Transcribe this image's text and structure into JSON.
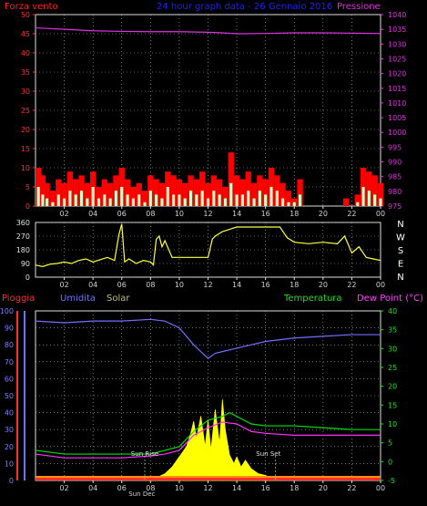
{
  "header": {
    "left_label": "Forza vento",
    "center_label": "24 hour graph data - 26 Gennaio 2016",
    "right_label": "Pressione"
  },
  "bottom_header": {
    "pioggia": "Pioggia",
    "umidita": "Umidita",
    "solar": "Solar",
    "temperatura": "Temperatura",
    "dewpoint": "Dew Point (°C)"
  },
  "colors": {
    "wind": "#ff0000",
    "gust": "#c8ffc8",
    "pressure": "#e030e0",
    "direction": "#ffff40",
    "humidity": "#7070ff",
    "solar": "#ffff00",
    "temperature": "#00e000",
    "dewpoint": "#ff30ff",
    "rain": "#ff3030",
    "grid": "#c0c0c0"
  },
  "chart_data": [
    {
      "type": "bar",
      "name": "wind-pressure",
      "x_ticks": [
        "02",
        "04",
        "06",
        "08",
        "10",
        "12",
        "14",
        "16",
        "18",
        "20",
        "22",
        "00"
      ],
      "y_left_ticks": [
        "0",
        "5",
        "10",
        "15",
        "20",
        "25",
        "30",
        "35",
        "40",
        "45",
        "50"
      ],
      "y_left_lim": [
        0,
        50
      ],
      "y_right_ticks": [
        "975",
        "980",
        "985",
        "990",
        "995",
        "1000",
        "1005",
        "1010",
        "1015",
        "1020",
        "1025",
        "1030",
        "1035",
        "1040"
      ],
      "y_right_lim": [
        975,
        1040
      ],
      "x_range_hours": [
        0,
        24
      ],
      "series": [
        {
          "name": "Forza vento",
          "kind": "bar",
          "x": [
            0,
            0.3,
            0.6,
            1.0,
            1.4,
            1.8,
            2.2,
            2.6,
            3.0,
            3.4,
            3.8,
            4.2,
            4.6,
            5.0,
            5.4,
            5.8,
            6.2,
            6.6,
            7.0,
            7.4,
            7.8,
            8.2,
            8.6,
            9.0,
            9.4,
            9.8,
            10.2,
            10.6,
            11.0,
            11.4,
            11.8,
            12.2,
            12.6,
            13.0,
            13.4,
            13.8,
            14.2,
            14.6,
            15.0,
            15.4,
            15.8,
            16.2,
            16.6,
            17.0,
            17.4,
            17.8,
            18.2,
            18.6,
            19.0,
            19.4,
            19.8,
            20.2,
            20.6,
            21.0,
            21.4,
            21.8,
            22.2,
            22.6,
            23.0,
            23.4,
            23.8
          ],
          "values": [
            10,
            8,
            6,
            4,
            7,
            6,
            9,
            7,
            8,
            6,
            9,
            5,
            7,
            6,
            8,
            10,
            7,
            5,
            6,
            4,
            8,
            7,
            6,
            9,
            8,
            7,
            6,
            8,
            7,
            9,
            6,
            8,
            7,
            5,
            14,
            8,
            7,
            9,
            6,
            8,
            7,
            10,
            8,
            6,
            4,
            2,
            7,
            0,
            0,
            0,
            0,
            0,
            0,
            0,
            2,
            0,
            3,
            10,
            9,
            8,
            6
          ]
        },
        {
          "name": "Gust",
          "kind": "bar",
          "x": [
            0,
            0.3,
            0.6,
            1.0,
            1.4,
            1.8,
            2.2,
            2.6,
            3.0,
            3.4,
            3.8,
            4.2,
            4.6,
            5.0,
            5.4,
            5.8,
            6.2,
            6.6,
            7.0,
            7.4,
            7.8,
            8.2,
            8.6,
            9.0,
            9.4,
            9.8,
            10.2,
            10.6,
            11.0,
            11.4,
            11.8,
            12.2,
            12.6,
            13.0,
            13.4,
            13.8,
            14.2,
            14.6,
            15.0,
            15.4,
            15.8,
            16.2,
            16.6,
            17.0,
            17.4,
            17.8,
            18.2,
            18.6,
            19.0,
            19.4,
            19.8,
            20.2,
            20.6,
            21.0,
            21.4,
            21.8,
            22.2,
            22.6,
            23.0,
            23.4,
            23.8
          ],
          "values": [
            5,
            3,
            2,
            1,
            3,
            2,
            4,
            3,
            4,
            2,
            5,
            2,
            3,
            2,
            4,
            5,
            3,
            2,
            3,
            1,
            4,
            3,
            2,
            5,
            3,
            3,
            2,
            4,
            3,
            4,
            2,
            4,
            3,
            2,
            6,
            3,
            3,
            4,
            2,
            4,
            3,
            5,
            4,
            2,
            1,
            1,
            3,
            0,
            0,
            0,
            0,
            0,
            0,
            0,
            0,
            0,
            1,
            5,
            4,
            3,
            2
          ]
        },
        {
          "name": "Pressione",
          "kind": "line",
          "axis": "right",
          "x": [
            0,
            2,
            4,
            6,
            8,
            10,
            12,
            13,
            14,
            16,
            18,
            20,
            22,
            24
          ],
          "values": [
            1035.5,
            1035,
            1034.5,
            1034.3,
            1034.2,
            1034.2,
            1034,
            1033.8,
            1033.5,
            1033.6,
            1033.8,
            1033.8,
            1033.7,
            1033.6
          ]
        }
      ]
    },
    {
      "type": "line",
      "name": "wind-direction",
      "x_ticks": [
        "02",
        "04",
        "06",
        "08",
        "10",
        "12",
        "14",
        "16",
        "18",
        "20",
        "22",
        "00"
      ],
      "y_left_ticks": [
        "0",
        "90",
        "180",
        "270",
        "360"
      ],
      "y_left_lim": [
        0,
        360
      ],
      "y_right_ticks": [
        "N",
        "W",
        "S",
        "E",
        "N"
      ],
      "series": [
        {
          "name": "Direction",
          "x": [
            0,
            0.5,
            1.0,
            1.5,
            2.0,
            2.5,
            3.0,
            3.5,
            4.0,
            4.5,
            5.0,
            5.5,
            5.8,
            6.0,
            6.2,
            6.5,
            7.0,
            7.5,
            8.0,
            8.2,
            8.4,
            8.6,
            8.8,
            9.0,
            9.5,
            10.0,
            11.0,
            12.0,
            12.3,
            12.5,
            13.0,
            14.0,
            15.0,
            16.0,
            16.5,
            17.0,
            17.5,
            18.0,
            19.0,
            20.0,
            21.0,
            21.5,
            22.0,
            22.5,
            23.0,
            23.5,
            24.0
          ],
          "values": [
            80,
            70,
            85,
            90,
            100,
            90,
            110,
            120,
            100,
            115,
            130,
            110,
            280,
            350,
            100,
            120,
            90,
            110,
            100,
            80,
            250,
            270,
            200,
            240,
            130,
            130,
            130,
            130,
            250,
            270,
            300,
            330,
            330,
            330,
            330,
            330,
            260,
            230,
            220,
            230,
            220,
            270,
            160,
            200,
            130,
            120,
            110
          ]
        }
      ]
    },
    {
      "type": "line",
      "name": "rain-humidity-solar-temp",
      "x_ticks": [
        "02",
        "04",
        "06",
        "08",
        "10",
        "12",
        "14",
        "16",
        "18",
        "20",
        "22",
        "00"
      ],
      "y_left_ticks": [
        "0",
        "10",
        "20",
        "30",
        "40",
        "50",
        "60",
        "70",
        "80",
        "90",
        "100"
      ],
      "y_left_lim": [
        0,
        100
      ],
      "y_right_ticks": [
        "-5",
        "0",
        "5",
        "10",
        "15",
        "20",
        "25",
        "30",
        "35",
        "40"
      ],
      "y_right_lim": [
        -5,
        40
      ],
      "annotations": [
        "Sun Rise",
        "Sun Set",
        "Sun Dec"
      ],
      "series": [
        {
          "name": "Umidita",
          "axis": "left",
          "x": [
            0,
            2,
            4,
            6,
            8,
            9,
            10,
            11,
            12,
            12.5,
            13,
            14,
            15,
            16,
            18,
            20,
            22,
            24
          ],
          "values": [
            94,
            93,
            94,
            94,
            95,
            94,
            90,
            80,
            72,
            75,
            76,
            78,
            80,
            82,
            84,
            85,
            86,
            86
          ]
        },
        {
          "name": "Temperatura",
          "axis": "right",
          "x": [
            0,
            2,
            4,
            6,
            8,
            9,
            10,
            11,
            12,
            13,
            13.5,
            14,
            15,
            16,
            18,
            20,
            22,
            24
          ],
          "values": [
            3,
            2,
            2,
            2,
            2,
            3,
            4,
            8,
            11,
            12,
            13,
            12,
            10,
            9.5,
            9.5,
            9,
            8.5,
            8.5
          ]
        },
        {
          "name": "Dew Point",
          "axis": "right",
          "x": [
            0,
            2,
            4,
            6,
            8,
            9,
            10,
            11,
            12,
            13,
            14,
            15,
            16,
            18,
            20,
            22,
            24
          ],
          "values": [
            2,
            1,
            1,
            1,
            1.5,
            2,
            3,
            7,
            9,
            10.5,
            10,
            8,
            7.5,
            7,
            7,
            7,
            7
          ]
        },
        {
          "name": "Solar",
          "axis": "left",
          "x": [
            7.5,
            8.5,
            9.0,
            9.5,
            10.0,
            10.5,
            10.8,
            11.0,
            11.2,
            11.5,
            11.8,
            12.0,
            12.2,
            12.5,
            12.8,
            13.0,
            13.2,
            13.5,
            13.8,
            14.0,
            14.3,
            14.6,
            15.0,
            15.5,
            16.0,
            16.5,
            17.0
          ],
          "values": [
            0,
            2,
            4,
            8,
            14,
            20,
            28,
            35,
            25,
            38,
            20,
            36,
            18,
            42,
            22,
            48,
            30,
            15,
            10,
            14,
            8,
            12,
            7,
            4,
            3,
            1,
            0
          ]
        },
        {
          "name": "Pioggia",
          "axis": "left",
          "x": [
            0,
            24
          ],
          "values": [
            0,
            0
          ]
        }
      ]
    }
  ]
}
